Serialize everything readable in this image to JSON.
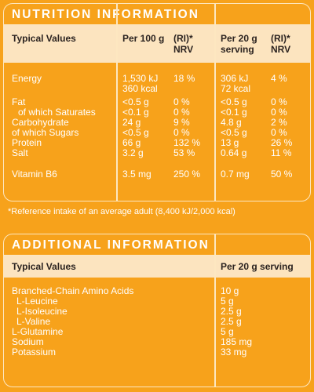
{
  "nutrition": {
    "title": "NUTRITION INFORMATION",
    "headers": {
      "label": "Typical Values",
      "per100": "Per 100 g",
      "ri100_line1": "(RI)*",
      "ri100_line2": "NRV",
      "per20_line1": "Per 20 g",
      "per20_line2": "serving",
      "ri20_line1": "(RI)*",
      "ri20_line2": "NRV"
    },
    "rows": [
      {
        "label": "Energy",
        "per100": "1,530 kJ",
        "ri100": "18 %",
        "per20": "306 kJ",
        "ri20": "4 %"
      },
      {
        "label": "",
        "per100": "360 kcal",
        "ri100": "",
        "per20": "72 kcal",
        "ri20": ""
      },
      {
        "label": "Fat",
        "per100": "<0.5 g",
        "ri100": "0 %",
        "per20": "<0.5 g",
        "ri20": "0 %"
      },
      {
        "label": "of which Saturates",
        "per100": "<0.1 g",
        "ri100": "0 %",
        "per20": "<0.1 g",
        "ri20": "0 %"
      },
      {
        "label": "Carbohydrate",
        "per100": "24 g",
        "ri100": "9 %",
        "per20": "4.8 g",
        "ri20": "2 %"
      },
      {
        "label": "of which Sugars",
        "per100": "<0.5 g",
        "ri100": "0 %",
        "per20": "<0.5 g",
        "ri20": "0 %"
      },
      {
        "label": "Protein",
        "per100": "66 g",
        "ri100": "132 %",
        "per20": "13 g",
        "ri20": "26 %"
      },
      {
        "label": "Salt",
        "per100": "3.2 g",
        "ri100": "53 %",
        "per20": "0.64 g",
        "ri20": "11 %"
      },
      {
        "label": "Vitamin B6",
        "per100": "3.5 mg",
        "ri100": "250 %",
        "per20": "0.7 mg",
        "ri20": "50 %"
      }
    ],
    "footnote": "*Reference intake of an average adult (8,400 kJ/2,000 kcal)"
  },
  "additional": {
    "title": "ADDITIONAL INFORMATION",
    "headers": {
      "label": "Typical Values",
      "per20": "Per 20 g serving"
    },
    "rows": [
      {
        "label": "Branched-Chain Amino Acids",
        "per20": "10 g"
      },
      {
        "label": "L-Leucine",
        "per20": "5 g"
      },
      {
        "label": "L-Isoleucine",
        "per20": "2.5 g"
      },
      {
        "label": "L-Valine",
        "per20": "2.5 g"
      },
      {
        "label": "L-Glutamine",
        "per20": "5 g"
      },
      {
        "label": "Sodium",
        "per20": "185 mg"
      },
      {
        "label": "Potassium",
        "per20": "33 mg"
      }
    ]
  },
  "colors": {
    "background": "#f7a21b",
    "header_band": "#fce4bf",
    "border": "#fde7c0",
    "header_text": "#2b2320"
  }
}
